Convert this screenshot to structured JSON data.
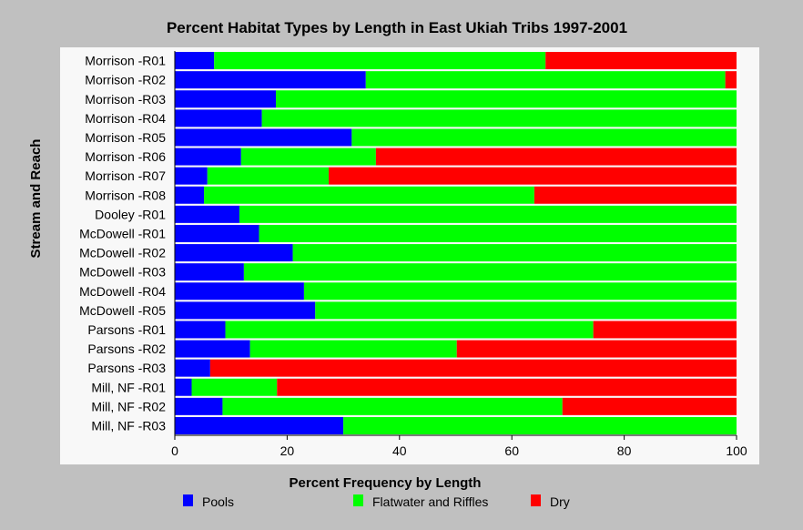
{
  "chart_data": {
    "type": "bar",
    "orientation": "horizontal",
    "stacked": true,
    "title": "Percent Habitat Types by Length in East Ukiah Tribs 1997-2001",
    "xlabel": "Percent Frequency by Length",
    "ylabel": "Stream and Reach",
    "xlim": [
      0,
      100
    ],
    "xticks": [
      0,
      20,
      40,
      60,
      80,
      100
    ],
    "grid": false,
    "legend_position": "bottom",
    "categories": [
      "Morrison -R01",
      "Morrison -R02",
      "Morrison -R03",
      "Morrison -R04",
      "Morrison -R05",
      "Morrison -R06",
      "Morrison -R07",
      "Morrison -R08",
      "Dooley -R01",
      "McDowell -R01",
      "McDowell -R02",
      "McDowell -R03",
      "McDowell -R04",
      "McDowell -R05",
      "Parsons -R01",
      "Parsons -R02",
      "Parsons -R03",
      "Mill, NF -R01",
      "Mill, NF -R02",
      "Mill, NF -R03"
    ],
    "series": [
      {
        "name": "Pools",
        "color": "#0000ff",
        "values": [
          7,
          34,
          18,
          15.5,
          31.5,
          11.8,
          5.8,
          5.2,
          11.5,
          15,
          21,
          12.3,
          23,
          25,
          9,
          13.4,
          6.3,
          3,
          8.5,
          30
        ]
      },
      {
        "name": "Flatwater and Riffles",
        "color": "#00ff00",
        "values": [
          59,
          64,
          82,
          84.5,
          68.5,
          24,
          21.6,
          58.8,
          88.5,
          85,
          79,
          87.7,
          77,
          75,
          65.5,
          36.8,
          0,
          15.2,
          60.5,
          70
        ]
      },
      {
        "name": "Dry",
        "color": "#ff0000",
        "values": [
          34,
          2,
          0,
          0,
          0,
          64.2,
          72.6,
          36,
          0,
          0,
          0,
          0,
          0,
          0,
          25.5,
          49.8,
          93.7,
          81.8,
          31,
          0
        ]
      }
    ]
  }
}
